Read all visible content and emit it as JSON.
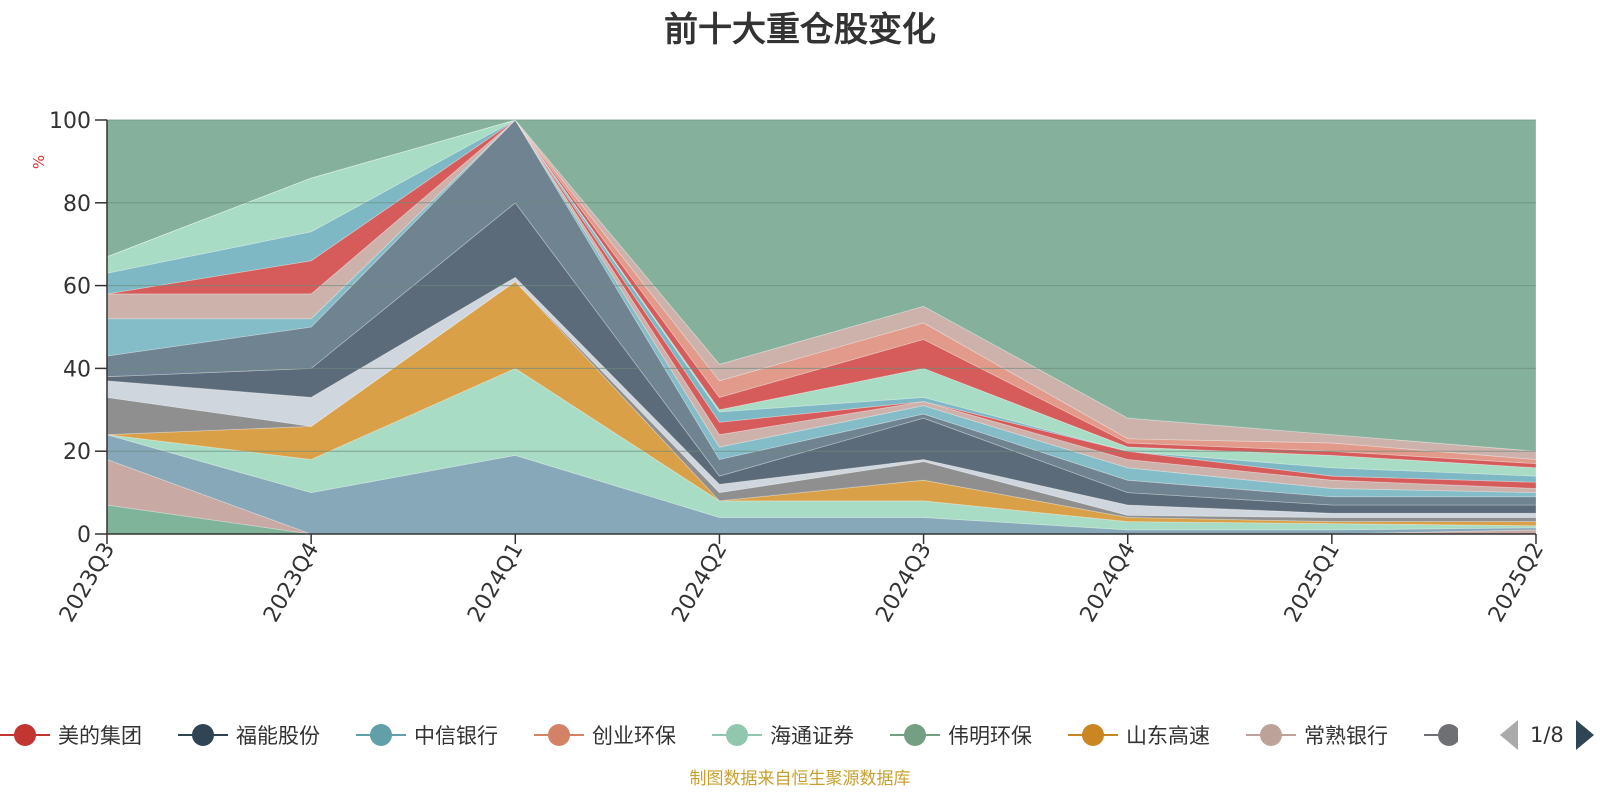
{
  "chart_data": {
    "type": "area",
    "title": "前十大重仓股变化",
    "ylabel": "%",
    "ylim": [
      0,
      100
    ],
    "yticks": [
      0,
      20,
      40,
      60,
      80,
      100
    ],
    "categories": [
      "2023Q3",
      "2023Q4",
      "2024Q1",
      "2024Q2",
      "2024Q3",
      "2024Q4",
      "2025Q1",
      "2025Q2"
    ],
    "boundaries": [
      [
        0,
        0,
        0,
        0,
        0,
        0,
        0,
        0
      ],
      [
        7,
        0,
        0,
        0,
        0,
        0,
        0,
        0
      ],
      [
        18,
        0,
        0,
        0,
        0,
        0,
        0,
        1
      ],
      [
        24,
        10,
        19,
        4,
        4,
        1,
        1,
        1.5
      ],
      [
        24,
        18,
        40,
        8,
        8,
        3,
        2.5,
        2
      ],
      [
        24,
        26,
        61,
        8,
        13,
        4,
        3,
        3
      ],
      [
        33,
        26,
        61,
        10,
        17.5,
        4.5,
        4,
        4
      ],
      [
        37,
        33,
        62,
        12,
        18,
        7,
        5,
        5
      ],
      [
        38,
        40,
        80,
        14,
        28,
        10,
        7,
        7
      ],
      [
        43,
        50,
        100,
        18,
        29,
        13,
        9,
        9
      ],
      [
        52,
        52,
        100,
        21,
        31,
        16,
        11,
        10
      ],
      [
        58,
        58,
        100,
        24,
        32,
        18,
        13,
        11
      ],
      [
        58,
        66,
        100,
        27,
        32,
        20,
        14,
        12.5
      ],
      [
        63,
        73,
        100,
        29.5,
        33,
        20,
        16,
        14
      ],
      [
        67,
        86,
        100,
        30,
        40,
        21,
        19,
        16
      ],
      [
        67,
        86,
        100,
        33,
        47,
        22,
        20,
        17
      ],
      [
        67,
        86,
        100,
        37,
        51,
        23,
        22,
        18
      ],
      [
        67,
        86,
        100,
        41,
        55,
        28,
        24,
        20
      ],
      [
        100,
        100,
        100,
        100,
        100,
        100,
        100,
        100
      ]
    ],
    "band_colors": [
      "#7fb49a",
      "#c8a9a3",
      "#87a8b8",
      "#a8dcc4",
      "#d9a047",
      "#8f8f8f",
      "#d0d6de",
      "#5b6b7a",
      "#6f8390",
      "#84bcc8",
      "#cdb2ab",
      "#d65c5c",
      "#7eb8c4",
      "#a8dcc4",
      "#d65c5c",
      "#e29a8a",
      "#cdb2ab",
      "#85b19c"
    ],
    "series": [
      {
        "name": "美的集团",
        "color": "#c23531"
      },
      {
        "name": "福能股份",
        "color": "#2f4554"
      },
      {
        "name": "中信银行",
        "color": "#61a0a8"
      },
      {
        "name": "创业环保",
        "color": "#d48265"
      },
      {
        "name": "海通证券",
        "color": "#91c7ae"
      },
      {
        "name": "伟明环保",
        "color": "#749f83"
      },
      {
        "name": "山东高速",
        "color": "#ca8622"
      },
      {
        "name": "常熟银行",
        "color": "#bda29a"
      },
      {
        "name": "",
        "color": "#6e7074"
      }
    ],
    "grid": true,
    "legend_position": "bottom"
  },
  "legend": {
    "page": "1/8"
  },
  "source_note": "制图数据来自恒生聚源数据库"
}
